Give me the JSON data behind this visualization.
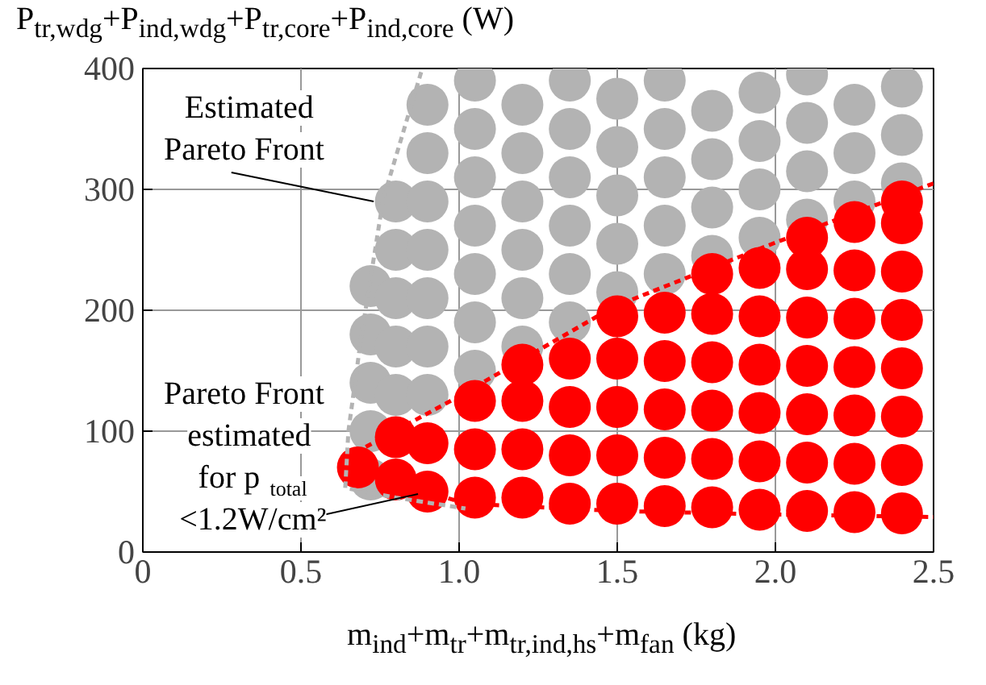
{
  "chart_data": {
    "type": "scatter",
    "xlabel": "m$_{ind}$+m$_{tr}$+m$_{tr,ind,hs}$+m$_{fan}$ (kg)",
    "ylabel": "P$_{tr,wdg}$+P$_{ind,wdg}$+P$_{tr,core}$+P$_{ind,core}$ (W)",
    "xlim": [
      0,
      2.5
    ],
    "ylim": [
      0,
      400
    ],
    "xticks": [
      0,
      0.5,
      {
        "value": 1,
        "label": "1.0"
      },
      1.5,
      {
        "value": 2,
        "label": "2.0"
      },
      2.5
    ],
    "yticks": [
      0,
      100,
      200,
      300,
      400
    ],
    "grid": true,
    "marker": "circle",
    "annotations": [
      {
        "text": "Estimated Pareto Front",
        "x": 0.73,
        "y": 290
      },
      {
        "text": "Pareto Front estimated for p$_{total}$ <1.2W/cm²",
        "x": 0.87,
        "y": 48
      }
    ],
    "series": [
      {
        "color": "#b3b3b3",
        "x": [
          0.72,
          0.72,
          0.72,
          0.72,
          0.72,
          0.8,
          0.8,
          0.8,
          0.8,
          0.8,
          0.9,
          0.9,
          0.9,
          0.9,
          0.9,
          0.9,
          0.9,
          1.05,
          1.05,
          1.05,
          1.05,
          1.05,
          1.05,
          1.05,
          1.2,
          1.2,
          1.2,
          1.2,
          1.2,
          1.2,
          1.35,
          1.35,
          1.35,
          1.35,
          1.35,
          1.35,
          1.5,
          1.5,
          1.5,
          1.5,
          1.5,
          1.65,
          1.65,
          1.65,
          1.65,
          1.65,
          1.8,
          1.8,
          1.8,
          1.8,
          1.95,
          1.95,
          1.95,
          1.95,
          2.1,
          2.1,
          2.1,
          2.1,
          2.25,
          2.25,
          2.25,
          2.4,
          2.4,
          2.4
        ],
        "values": [
          60,
          100,
          140,
          180,
          220,
          130,
          170,
          210,
          250,
          290,
          130,
          170,
          210,
          250,
          290,
          330,
          370,
          150,
          190,
          230,
          270,
          310,
          350,
          390,
          170,
          210,
          250,
          290,
          330,
          370,
          190,
          230,
          270,
          310,
          350,
          390,
          215,
          255,
          295,
          335,
          375,
          230,
          270,
          310,
          350,
          390,
          245,
          285,
          325,
          365,
          260,
          300,
          340,
          380,
          275,
          315,
          355,
          395,
          290,
          330,
          370,
          305,
          345,
          385
        ]
      },
      {
        "color": "#ff0000",
        "x": [
          0.68,
          0.8,
          0.8,
          0.9,
          0.9,
          1.05,
          1.05,
          1.05,
          1.2,
          1.2,
          1.2,
          1.2,
          1.35,
          1.35,
          1.35,
          1.35,
          1.5,
          1.5,
          1.5,
          1.5,
          1.5,
          1.65,
          1.65,
          1.65,
          1.65,
          1.65,
          1.8,
          1.8,
          1.8,
          1.8,
          1.8,
          1.8,
          1.95,
          1.95,
          1.95,
          1.95,
          1.95,
          1.95,
          2.1,
          2.1,
          2.1,
          2.1,
          2.1,
          2.1,
          2.1,
          2.25,
          2.25,
          2.25,
          2.25,
          2.25,
          2.25,
          2.25,
          2.4,
          2.4,
          2.4,
          2.4,
          2.4,
          2.4,
          2.4,
          2.4
        ],
        "values": [
          70,
          60,
          95,
          50,
          90,
          45,
          85,
          125,
          45,
          85,
          125,
          155,
          40,
          80,
          120,
          160,
          40,
          80,
          120,
          160,
          195,
          38,
          78,
          118,
          158,
          198,
          37,
          77,
          117,
          157,
          197,
          230,
          35,
          75,
          115,
          155,
          195,
          235,
          34,
          74,
          114,
          154,
          194,
          234,
          260,
          33,
          73,
          113,
          153,
          193,
          233,
          273,
          32,
          72,
          112,
          152,
          192,
          232,
          272,
          290
        ]
      },
      {
        "type": "line",
        "line_style": "dashed",
        "marker": "none",
        "color": "#b3b3b3",
        "x": [
          0.88,
          0.76,
          0.69,
          0.65,
          0.64,
          0.8,
          1.02
        ],
        "values": [
          397,
          292,
          177,
          100,
          53,
          45,
          36
        ]
      },
      {
        "type": "line",
        "line_style": "dashed",
        "marker": "none",
        "color": "#ff0000",
        "x": [
          2.5,
          2.0,
          1.49,
          0.98,
          0.67,
          0.66,
          1.02,
          1.5,
          2.0,
          2.5
        ],
        "values": [
          305,
          256,
          203,
          126,
          82,
          70,
          40,
          34,
          31,
          29
        ]
      }
    ]
  }
}
